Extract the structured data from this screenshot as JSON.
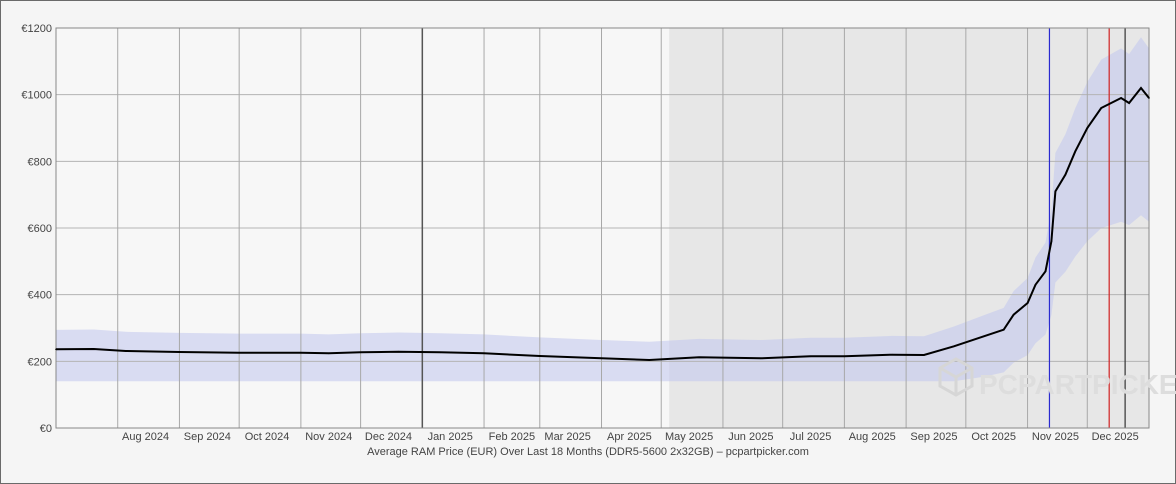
{
  "chart_data": {
    "type": "line",
    "title": "Average RAM Price (EUR) Over Last 18 Months (DDR5-5600 2x32GB) – pcpartpicker.com",
    "watermark": "PCPARTPICKER",
    "ylabel": "",
    "xlabel": "",
    "ylim": [
      0,
      1200
    ],
    "y_ticks": [
      "€0",
      "€200",
      "€400",
      "€600",
      "€800",
      "€1000",
      "€1200"
    ],
    "y_tick_values": [
      0,
      200,
      400,
      600,
      800,
      1000,
      1200
    ],
    "x_range": [
      "2024-07-01",
      "2026-01-01"
    ],
    "x_ticks": [
      "Aug 2024",
      "Sep 2024",
      "Oct 2024",
      "Nov 2024",
      "Dec 2024",
      "Jan 2025",
      "Feb 2025",
      "Mar 2025",
      "Apr 2025",
      "May 2025",
      "Jun 2025",
      "Jul 2025",
      "Aug 2025",
      "Sep 2025",
      "Oct 2025",
      "Nov 2025",
      "Dec 2025"
    ],
    "x_tick_dates": [
      "2024-08-15",
      "2024-09-15",
      "2024-10-15",
      "2024-11-15",
      "2024-12-15",
      "2025-01-15",
      "2025-02-15",
      "2025-03-15",
      "2025-04-15",
      "2025-05-15",
      "2025-06-15",
      "2025-07-15",
      "2025-08-15",
      "2025-09-15",
      "2025-10-15",
      "2025-11-15",
      "2025-12-15"
    ],
    "grid": true,
    "series": [
      {
        "values": [
          {
            "x": "2024-07-01",
            "y": 236
          },
          {
            "x": "2024-07-20",
            "y": 237
          },
          {
            "x": "2024-08-05",
            "y": 231
          },
          {
            "x": "2024-09-01",
            "y": 228
          },
          {
            "x": "2024-10-01",
            "y": 226
          },
          {
            "x": "2024-11-01",
            "y": 226
          },
          {
            "x": "2024-11-15",
            "y": 224
          },
          {
            "x": "2024-12-01",
            "y": 227
          },
          {
            "x": "2024-12-20",
            "y": 229
          },
          {
            "x": "2025-01-10",
            "y": 227
          },
          {
            "x": "2025-02-01",
            "y": 224
          },
          {
            "x": "2025-03-01",
            "y": 216
          },
          {
            "x": "2025-04-01",
            "y": 209
          },
          {
            "x": "2025-04-25",
            "y": 204
          },
          {
            "x": "2025-05-20",
            "y": 212
          },
          {
            "x": "2025-06-20",
            "y": 209
          },
          {
            "x": "2025-07-15",
            "y": 215
          },
          {
            "x": "2025-08-01",
            "y": 215
          },
          {
            "x": "2025-08-25",
            "y": 220
          },
          {
            "x": "2025-09-10",
            "y": 219
          },
          {
            "x": "2025-09-25",
            "y": 245
          },
          {
            "x": "2025-10-10",
            "y": 275
          },
          {
            "x": "2025-10-20",
            "y": 295
          },
          {
            "x": "2025-10-25",
            "y": 340
          },
          {
            "x": "2025-11-01",
            "y": 375
          },
          {
            "x": "2025-11-05",
            "y": 430
          },
          {
            "x": "2025-11-10",
            "y": 470
          },
          {
            "x": "2025-11-13",
            "y": 560
          },
          {
            "x": "2025-11-15",
            "y": 710
          },
          {
            "x": "2025-11-20",
            "y": 760
          },
          {
            "x": "2025-11-25",
            "y": 830
          },
          {
            "x": "2025-12-01",
            "y": 900
          },
          {
            "x": "2025-12-08",
            "y": 960
          },
          {
            "x": "2025-12-18",
            "y": 990
          },
          {
            "x": "2025-12-22",
            "y": 975
          },
          {
            "x": "2025-12-28",
            "y": 1020
          },
          {
            "x": "2026-01-01",
            "y": 990
          }
        ]
      }
    ]
  }
}
